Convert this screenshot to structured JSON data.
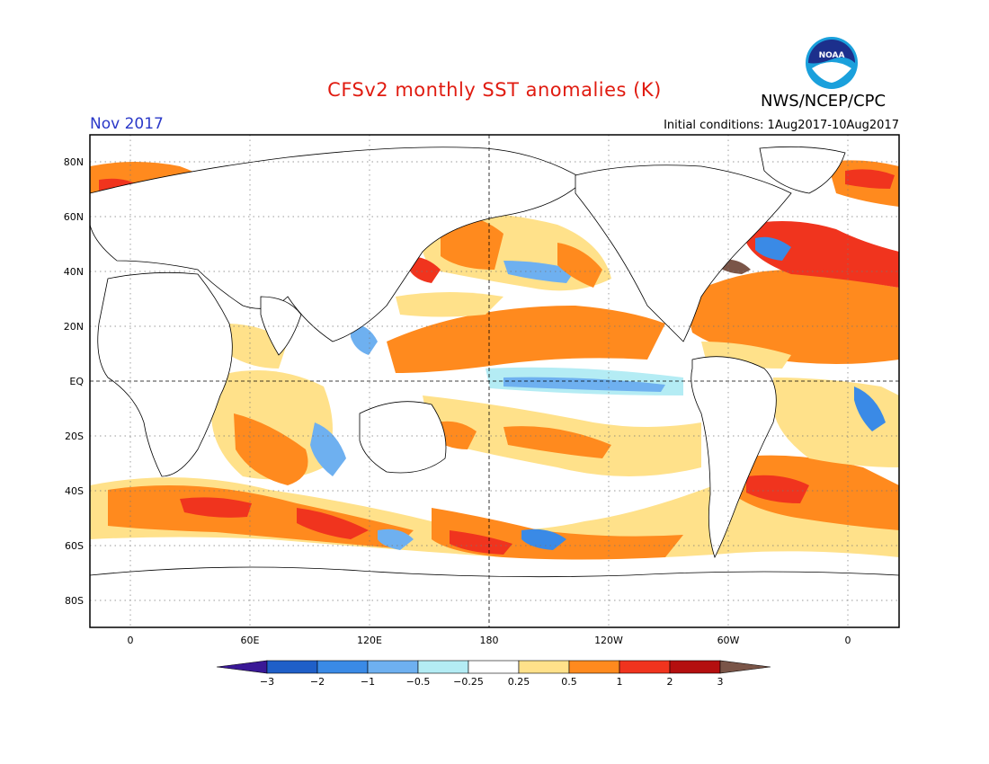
{
  "header": {
    "title": "CFSv2 monthly SST anomalies (K)",
    "agency": "NWS/NCEP/CPC",
    "month": "Nov 2017",
    "initial_conditions": "Initial conditions:  1Aug2017-10Aug2017",
    "logo_text": "NOAA"
  },
  "map": {
    "lat_labels": [
      "80N",
      "60N",
      "40N",
      "20N",
      "EQ",
      "20S",
      "40S",
      "60S",
      "80S"
    ],
    "lon_labels": [
      "0",
      "60E",
      "120E",
      "180",
      "120W",
      "60W",
      "0"
    ]
  },
  "colorbar": {
    "labels": [
      "-3",
      "-2",
      "-1",
      "-0.5",
      "-0.25",
      "0.25",
      "0.5",
      "1",
      "2",
      "3"
    ],
    "colors": [
      "#3a1896",
      "#1f5fc8",
      "#3a8ae6",
      "#6eb0f0",
      "#b4ecf4",
      "#ffffff",
      "#ffe18a",
      "#ff8a1e",
      "#f0341e",
      "#b40f0f",
      "#7a5548"
    ]
  },
  "colors": {
    "title": "#e01b10",
    "month": "#2a38c8",
    "land": "#ffffff"
  }
}
